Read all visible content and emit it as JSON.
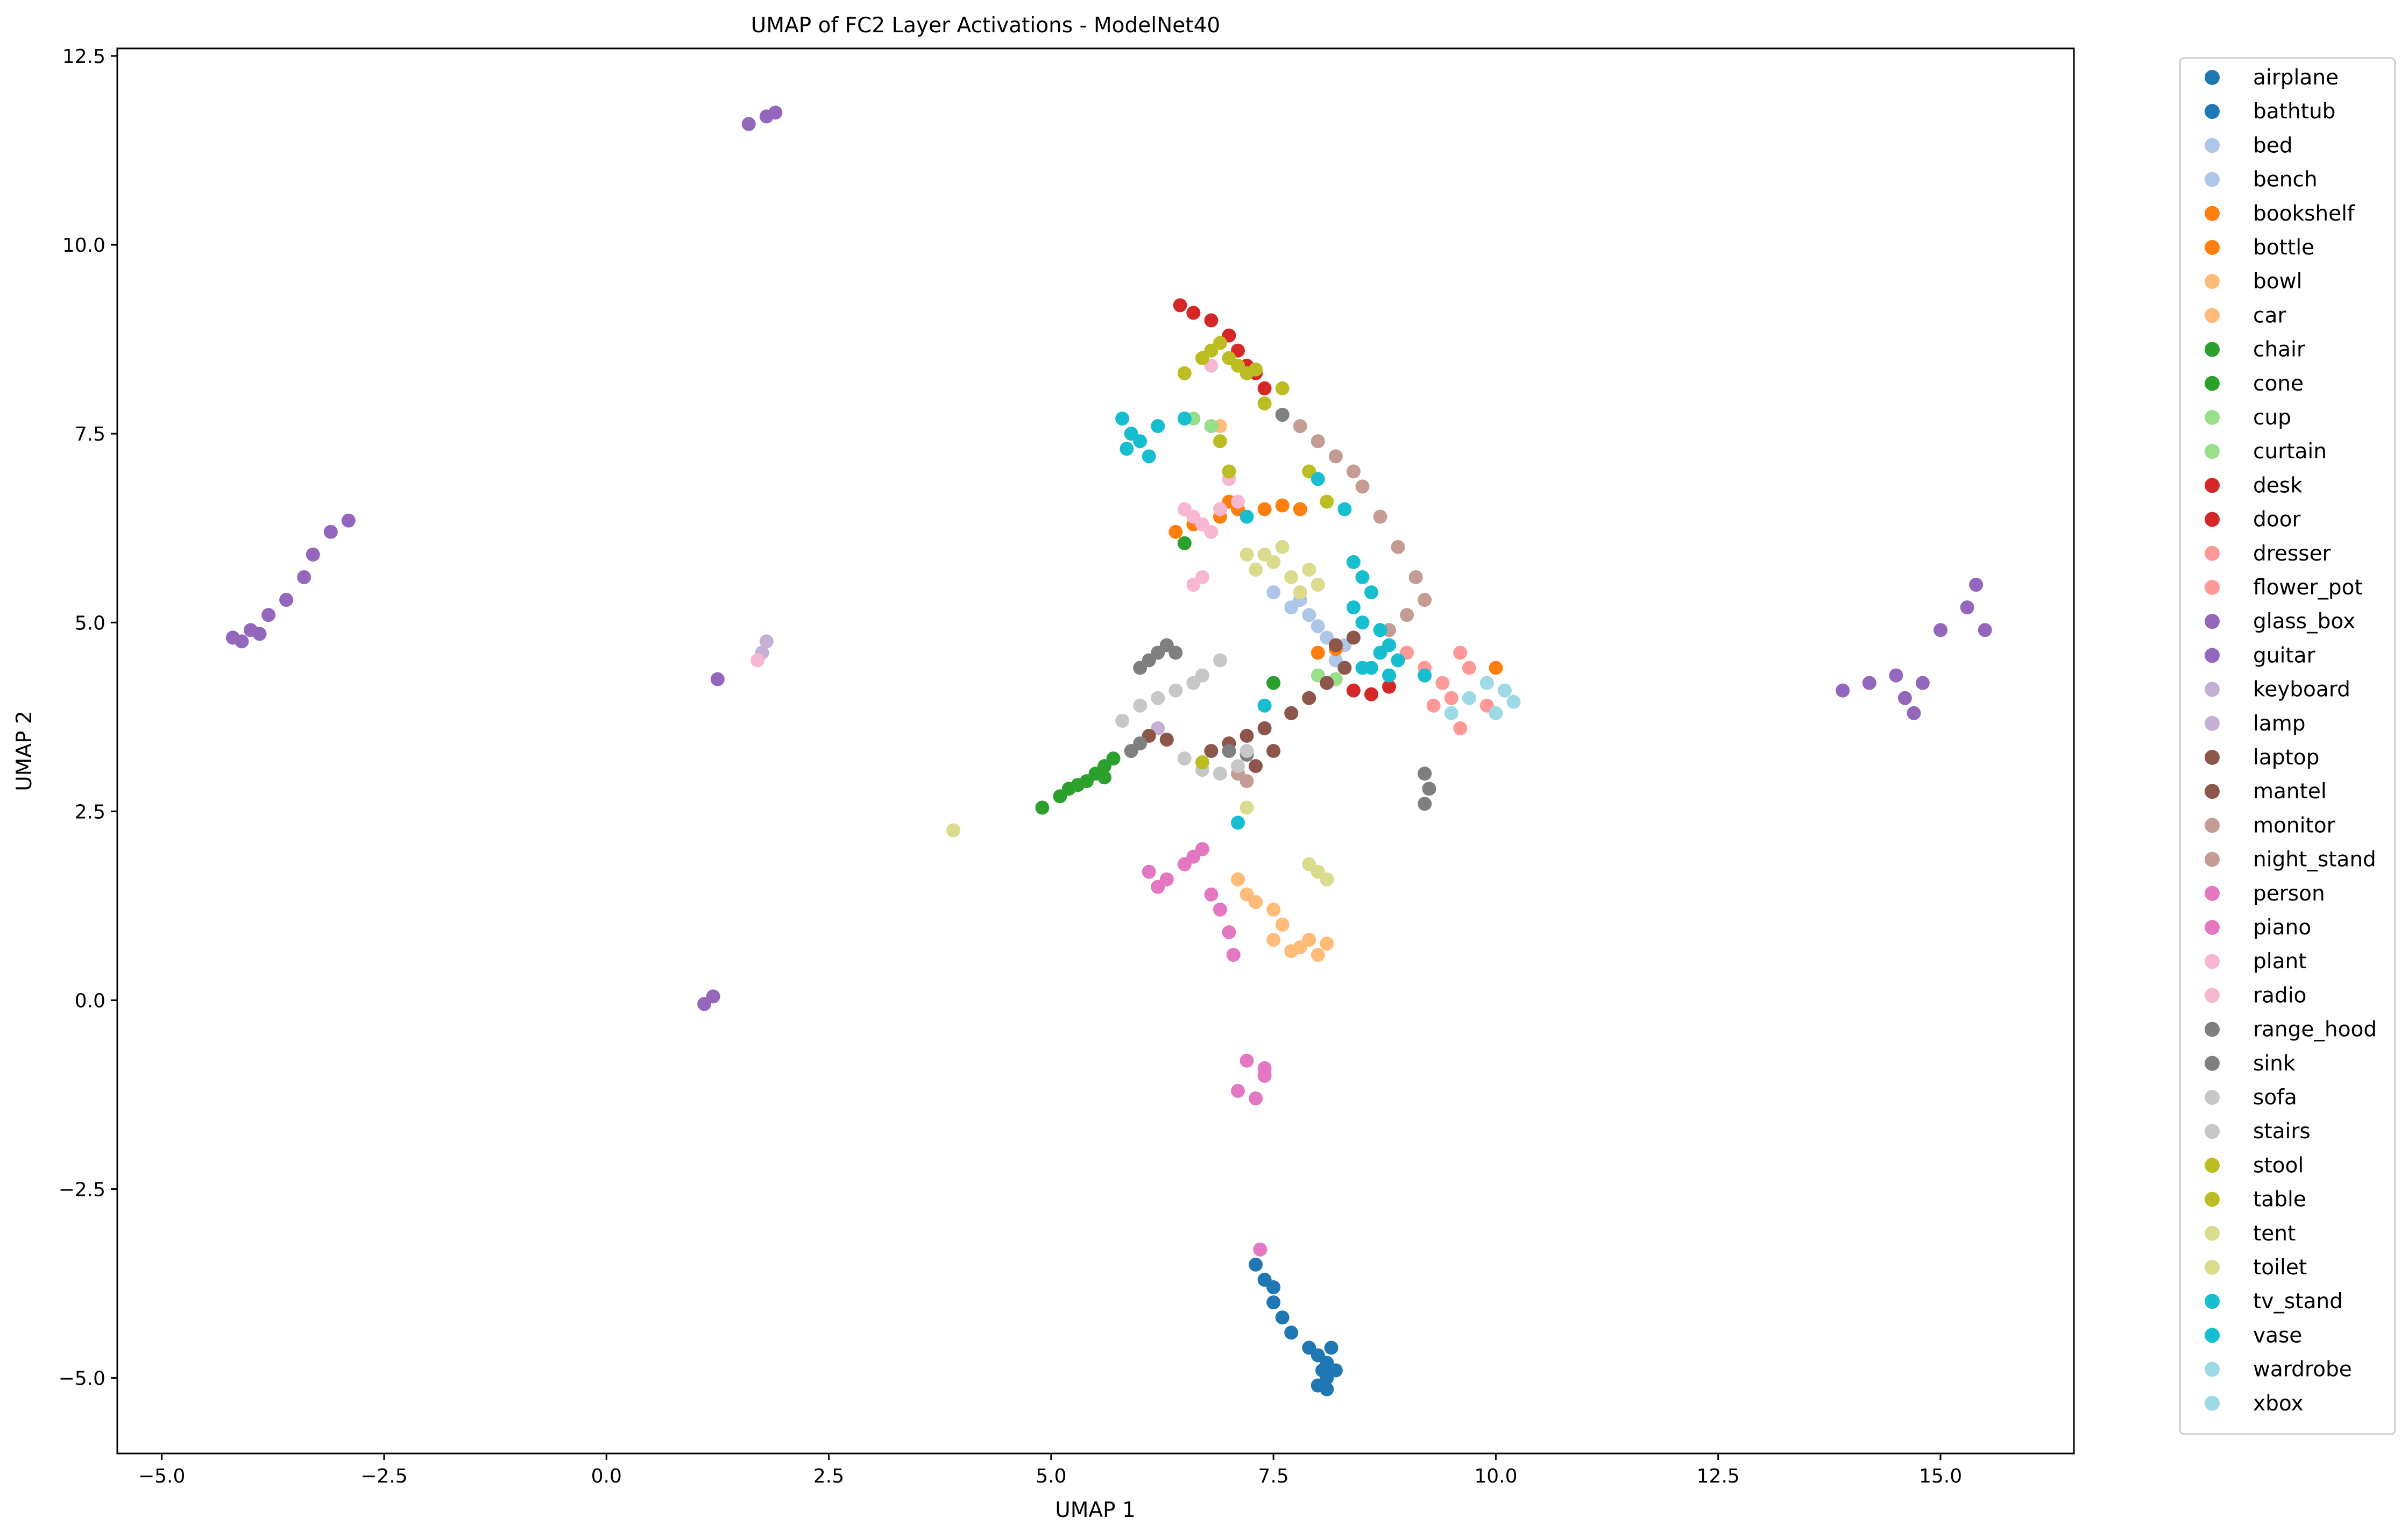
{
  "chart_data": {
    "type": "scatter",
    "title": "UMAP of FC2 Layer Activations - ModelNet40",
    "xlabel": "UMAP 1",
    "ylabel": "UMAP 2",
    "xlim": [
      -5.5,
      16.5
    ],
    "ylim": [
      -6.0,
      12.6
    ],
    "xticks": [
      -5.0,
      -2.5,
      0.0,
      2.5,
      5.0,
      7.5,
      10.0,
      12.5,
      15.0
    ],
    "xtick_labels": [
      "−5.0",
      "−2.5",
      "0.0",
      "2.5",
      "5.0",
      "7.5",
      "10.0",
      "12.5",
      "15.0"
    ],
    "yticks": [
      -5.0,
      -2.5,
      0.0,
      2.5,
      5.0,
      7.5,
      10.0,
      12.5
    ],
    "ytick_labels": [
      "−5.0",
      "−2.5",
      "0.0",
      "2.5",
      "5.0",
      "7.5",
      "10.0",
      "12.5"
    ],
    "grid": false,
    "legend_position": "outside-right",
    "series": [
      {
        "name": "airplane",
        "color": "#1f77b4",
        "points": []
      },
      {
        "name": "bathtub",
        "color": "#1f77b4",
        "points": [
          [
            7.3,
            -3.5
          ],
          [
            7.4,
            -3.7
          ],
          [
            7.5,
            -3.8
          ],
          [
            7.5,
            -4.0
          ],
          [
            7.6,
            -4.2
          ],
          [
            7.7,
            -4.4
          ],
          [
            7.9,
            -4.6
          ],
          [
            8.0,
            -4.7
          ],
          [
            8.1,
            -4.8
          ],
          [
            8.05,
            -4.9
          ],
          [
            8.1,
            -5.0
          ],
          [
            8.0,
            -5.1
          ],
          [
            8.15,
            -4.6
          ],
          [
            8.2,
            -4.9
          ],
          [
            8.1,
            -5.15
          ]
        ]
      },
      {
        "name": "bed",
        "color": "#aec7e8",
        "points": [
          [
            7.5,
            5.4
          ],
          [
            7.7,
            5.2
          ],
          [
            7.9,
            5.1
          ],
          [
            8.0,
            4.95
          ],
          [
            8.1,
            4.8
          ],
          [
            7.8,
            5.3
          ],
          [
            8.3,
            4.7
          ],
          [
            8.2,
            4.5
          ]
        ]
      },
      {
        "name": "bench",
        "color": "#aec7e8",
        "points": []
      },
      {
        "name": "bookshelf",
        "color": "#ff7f0e",
        "points": [
          [
            6.4,
            6.2
          ],
          [
            6.6,
            6.3
          ],
          [
            6.9,
            6.4
          ],
          [
            7.1,
            6.5
          ],
          [
            7.4,
            6.5
          ],
          [
            7.6,
            6.55
          ],
          [
            7.8,
            6.5
          ],
          [
            7.0,
            6.6
          ],
          [
            8.0,
            4.6
          ],
          [
            8.2,
            4.65
          ],
          [
            10.0,
            4.4
          ]
        ]
      },
      {
        "name": "bottle",
        "color": "#ff7f0e",
        "points": []
      },
      {
        "name": "bowl",
        "color": "#ffbb78",
        "points": [
          [
            7.1,
            1.6
          ],
          [
            7.2,
            1.4
          ],
          [
            7.3,
            1.3
          ],
          [
            7.5,
            1.2
          ],
          [
            7.6,
            1.0
          ],
          [
            7.5,
            0.8
          ],
          [
            7.8,
            0.7
          ],
          [
            8.0,
            0.6
          ],
          [
            7.9,
            0.8
          ],
          [
            7.7,
            0.65
          ],
          [
            8.1,
            0.75
          ],
          [
            6.9,
            7.6
          ]
        ]
      },
      {
        "name": "car",
        "color": "#ffbb78",
        "points": []
      },
      {
        "name": "chair",
        "color": "#2ca02c",
        "points": [
          [
            4.9,
            2.55
          ],
          [
            5.1,
            2.7
          ],
          [
            5.2,
            2.8
          ],
          [
            5.4,
            2.9
          ],
          [
            5.5,
            3.0
          ],
          [
            5.6,
            3.1
          ],
          [
            5.7,
            3.2
          ],
          [
            5.3,
            2.85
          ],
          [
            5.6,
            2.95
          ],
          [
            6.5,
            6.05
          ],
          [
            7.5,
            4.2
          ]
        ]
      },
      {
        "name": "cone",
        "color": "#2ca02c",
        "points": []
      },
      {
        "name": "cup",
        "color": "#98df8a",
        "points": [
          [
            6.6,
            7.7
          ],
          [
            6.8,
            7.6
          ],
          [
            8.0,
            4.3
          ],
          [
            8.2,
            4.25
          ]
        ]
      },
      {
        "name": "curtain",
        "color": "#98df8a",
        "points": []
      },
      {
        "name": "desk",
        "color": "#d62728",
        "points": [
          [
            6.45,
            9.2
          ],
          [
            6.6,
            9.1
          ],
          [
            6.8,
            9.0
          ],
          [
            7.0,
            8.8
          ],
          [
            7.1,
            8.6
          ],
          [
            7.2,
            8.4
          ],
          [
            7.3,
            8.3
          ],
          [
            7.4,
            8.1
          ],
          [
            8.4,
            4.1
          ],
          [
            8.6,
            4.05
          ],
          [
            8.8,
            4.15
          ]
        ]
      },
      {
        "name": "door",
        "color": "#d62728",
        "points": []
      },
      {
        "name": "dresser",
        "color": "#ff9896",
        "points": [
          [
            9.0,
            4.6
          ],
          [
            9.2,
            4.4
          ],
          [
            9.4,
            4.2
          ],
          [
            9.5,
            4.0
          ],
          [
            9.3,
            3.9
          ],
          [
            9.6,
            4.6
          ],
          [
            9.7,
            4.4
          ],
          [
            9.9,
            3.9
          ],
          [
            9.6,
            3.6
          ]
        ]
      },
      {
        "name": "flower_pot",
        "color": "#ff9896",
        "points": []
      },
      {
        "name": "glass_box",
        "color": "#9467bd",
        "points": [
          [
            -4.2,
            4.8
          ],
          [
            -4.0,
            4.9
          ],
          [
            -3.8,
            5.1
          ],
          [
            -3.6,
            5.3
          ],
          [
            -3.4,
            5.6
          ],
          [
            -3.3,
            5.9
          ],
          [
            -3.1,
            6.2
          ],
          [
            -2.9,
            6.35
          ],
          [
            -3.9,
            4.85
          ],
          [
            -4.1,
            4.75
          ],
          [
            1.6,
            11.6
          ],
          [
            1.8,
            11.7
          ],
          [
            1.9,
            11.75
          ],
          [
            1.2,
            0.05
          ],
          [
            1.1,
            -0.05
          ],
          [
            1.25,
            4.25
          ],
          [
            13.9,
            4.1
          ],
          [
            14.2,
            4.2
          ],
          [
            14.5,
            4.3
          ],
          [
            14.8,
            4.2
          ],
          [
            14.7,
            3.8
          ],
          [
            14.6,
            4.0
          ],
          [
            15.0,
            4.9
          ],
          [
            15.3,
            5.2
          ],
          [
            15.4,
            5.5
          ],
          [
            15.5,
            4.9
          ]
        ]
      },
      {
        "name": "guitar",
        "color": "#9467bd",
        "points": []
      },
      {
        "name": "keyboard",
        "color": "#c5b0d5",
        "points": [
          [
            1.8,
            4.75
          ],
          [
            1.75,
            4.6
          ],
          [
            6.2,
            3.6
          ]
        ]
      },
      {
        "name": "lamp",
        "color": "#c5b0d5",
        "points": []
      },
      {
        "name": "laptop",
        "color": "#8c564b",
        "points": [
          [
            6.8,
            3.3
          ],
          [
            7.0,
            3.4
          ],
          [
            7.2,
            3.5
          ],
          [
            7.4,
            3.6
          ],
          [
            7.5,
            3.3
          ],
          [
            7.3,
            3.1
          ],
          [
            7.7,
            3.8
          ],
          [
            7.9,
            4.0
          ],
          [
            8.1,
            4.2
          ],
          [
            8.3,
            4.4
          ],
          [
            8.2,
            4.7
          ],
          [
            8.4,
            4.8
          ],
          [
            6.1,
            3.5
          ],
          [
            6.3,
            3.45
          ]
        ]
      },
      {
        "name": "mantel",
        "color": "#8c564b",
        "points": []
      },
      {
        "name": "monitor",
        "color": "#c49c94",
        "points": [
          [
            7.6,
            7.75
          ],
          [
            7.8,
            7.6
          ],
          [
            8.0,
            7.4
          ],
          [
            8.2,
            7.2
          ],
          [
            8.4,
            7.0
          ],
          [
            8.5,
            6.8
          ],
          [
            8.7,
            6.4
          ],
          [
            8.9,
            6.0
          ],
          [
            9.1,
            5.6
          ],
          [
            9.2,
            5.3
          ],
          [
            9.0,
            5.1
          ],
          [
            8.8,
            4.9
          ],
          [
            7.1,
            3.0
          ],
          [
            7.2,
            2.9
          ]
        ]
      },
      {
        "name": "night_stand",
        "color": "#c49c94",
        "points": []
      },
      {
        "name": "person",
        "color": "#e377c2",
        "points": [
          [
            6.1,
            1.7
          ],
          [
            6.3,
            1.6
          ],
          [
            6.5,
            1.8
          ],
          [
            6.6,
            1.9
          ],
          [
            6.7,
            2.0
          ],
          [
            6.8,
            1.4
          ],
          [
            6.9,
            1.2
          ],
          [
            7.0,
            0.9
          ],
          [
            7.05,
            0.6
          ],
          [
            6.2,
            1.5
          ],
          [
            7.2,
            -0.8
          ],
          [
            7.4,
            -0.9
          ],
          [
            7.1,
            -1.2
          ],
          [
            7.3,
            -1.3
          ],
          [
            7.4,
            -1.0
          ],
          [
            7.35,
            -3.3
          ]
        ]
      },
      {
        "name": "piano",
        "color": "#e377c2",
        "points": []
      },
      {
        "name": "plant",
        "color": "#f7b6d2",
        "points": [
          [
            6.5,
            6.5
          ],
          [
            6.6,
            6.4
          ],
          [
            6.7,
            6.3
          ],
          [
            6.9,
            6.5
          ],
          [
            6.8,
            6.2
          ],
          [
            6.7,
            5.6
          ],
          [
            6.6,
            5.5
          ],
          [
            6.8,
            8.4
          ],
          [
            7.1,
            6.6
          ],
          [
            1.7,
            4.5
          ],
          [
            7.0,
            6.9
          ]
        ]
      },
      {
        "name": "radio",
        "color": "#f7b6d2",
        "points": []
      },
      {
        "name": "range_hood",
        "color": "#7f7f7f",
        "points": [
          [
            6.0,
            4.4
          ],
          [
            6.1,
            4.5
          ],
          [
            6.2,
            4.6
          ],
          [
            6.3,
            4.7
          ],
          [
            6.4,
            4.6
          ],
          [
            5.9,
            3.3
          ],
          [
            6.0,
            3.4
          ],
          [
            9.2,
            3.0
          ],
          [
            9.25,
            2.8
          ],
          [
            9.2,
            2.6
          ],
          [
            7.6,
            7.75
          ],
          [
            7.0,
            3.3
          ],
          [
            7.2,
            3.25
          ]
        ]
      },
      {
        "name": "sink",
        "color": "#7f7f7f",
        "points": []
      },
      {
        "name": "sofa",
        "color": "#c7c7c7",
        "points": [
          [
            5.8,
            3.7
          ],
          [
            6.0,
            3.9
          ],
          [
            6.2,
            4.0
          ],
          [
            6.4,
            4.1
          ],
          [
            6.6,
            4.2
          ],
          [
            6.7,
            4.3
          ],
          [
            6.9,
            4.5
          ],
          [
            6.5,
            3.2
          ],
          [
            6.7,
            3.05
          ],
          [
            6.9,
            3.0
          ],
          [
            7.1,
            3.1
          ],
          [
            7.2,
            3.3
          ]
        ]
      },
      {
        "name": "stairs",
        "color": "#c7c7c7",
        "points": []
      },
      {
        "name": "stool",
        "color": "#bcbd22",
        "points": [
          [
            6.5,
            8.3
          ],
          [
            6.7,
            8.5
          ],
          [
            6.8,
            8.6
          ],
          [
            6.9,
            8.7
          ],
          [
            7.0,
            8.5
          ],
          [
            7.1,
            8.4
          ],
          [
            7.2,
            8.3
          ],
          [
            7.3,
            8.35
          ],
          [
            7.4,
            7.9
          ],
          [
            7.6,
            8.1
          ],
          [
            6.9,
            7.4
          ],
          [
            7.0,
            7.0
          ],
          [
            7.9,
            7.0
          ],
          [
            8.1,
            6.6
          ],
          [
            6.7,
            3.15
          ]
        ]
      },
      {
        "name": "table",
        "color": "#bcbd22",
        "points": []
      },
      {
        "name": "tent",
        "color": "#dbdb8d",
        "points": [
          [
            7.3,
            5.7
          ],
          [
            7.4,
            5.9
          ],
          [
            7.5,
            5.8
          ],
          [
            7.6,
            6.0
          ],
          [
            7.7,
            5.6
          ],
          [
            7.8,
            5.4
          ],
          [
            7.9,
            5.7
          ],
          [
            8.0,
            5.5
          ],
          [
            7.2,
            5.9
          ],
          [
            3.9,
            2.25
          ],
          [
            7.9,
            1.8
          ],
          [
            8.0,
            1.7
          ],
          [
            8.1,
            1.6
          ],
          [
            7.2,
            2.55
          ]
        ]
      },
      {
        "name": "toilet",
        "color": "#dbdb8d",
        "points": []
      },
      {
        "name": "tv_stand",
        "color": "#17becf",
        "points": [
          [
            5.8,
            7.7
          ],
          [
            5.9,
            7.5
          ],
          [
            6.0,
            7.4
          ],
          [
            6.1,
            7.2
          ],
          [
            6.2,
            7.6
          ],
          [
            5.85,
            7.3
          ],
          [
            8.4,
            5.8
          ],
          [
            8.5,
            5.6
          ],
          [
            8.6,
            5.4
          ],
          [
            8.5,
            5.0
          ],
          [
            8.7,
            4.9
          ],
          [
            8.8,
            4.7
          ],
          [
            8.6,
            4.4
          ],
          [
            8.7,
            4.6
          ],
          [
            8.9,
            4.5
          ],
          [
            8.8,
            4.3
          ],
          [
            8.4,
            5.2
          ]
        ]
      },
      {
        "name": "vase",
        "color": "#17becf",
        "points": [
          [
            6.5,
            7.7
          ],
          [
            7.2,
            6.4
          ],
          [
            8.0,
            6.9
          ],
          [
            8.3,
            6.5
          ],
          [
            8.5,
            4.4
          ],
          [
            7.4,
            3.9
          ],
          [
            7.1,
            2.35
          ],
          [
            9.2,
            4.3
          ]
        ]
      },
      {
        "name": "wardrobe",
        "color": "#9edae5",
        "points": [
          [
            9.5,
            3.8
          ],
          [
            9.7,
            4.0
          ],
          [
            9.9,
            4.2
          ],
          [
            10.1,
            4.1
          ],
          [
            10.2,
            3.95
          ],
          [
            10.0,
            3.8
          ]
        ]
      },
      {
        "name": "xbox",
        "color": "#9edae5",
        "points": []
      }
    ]
  }
}
